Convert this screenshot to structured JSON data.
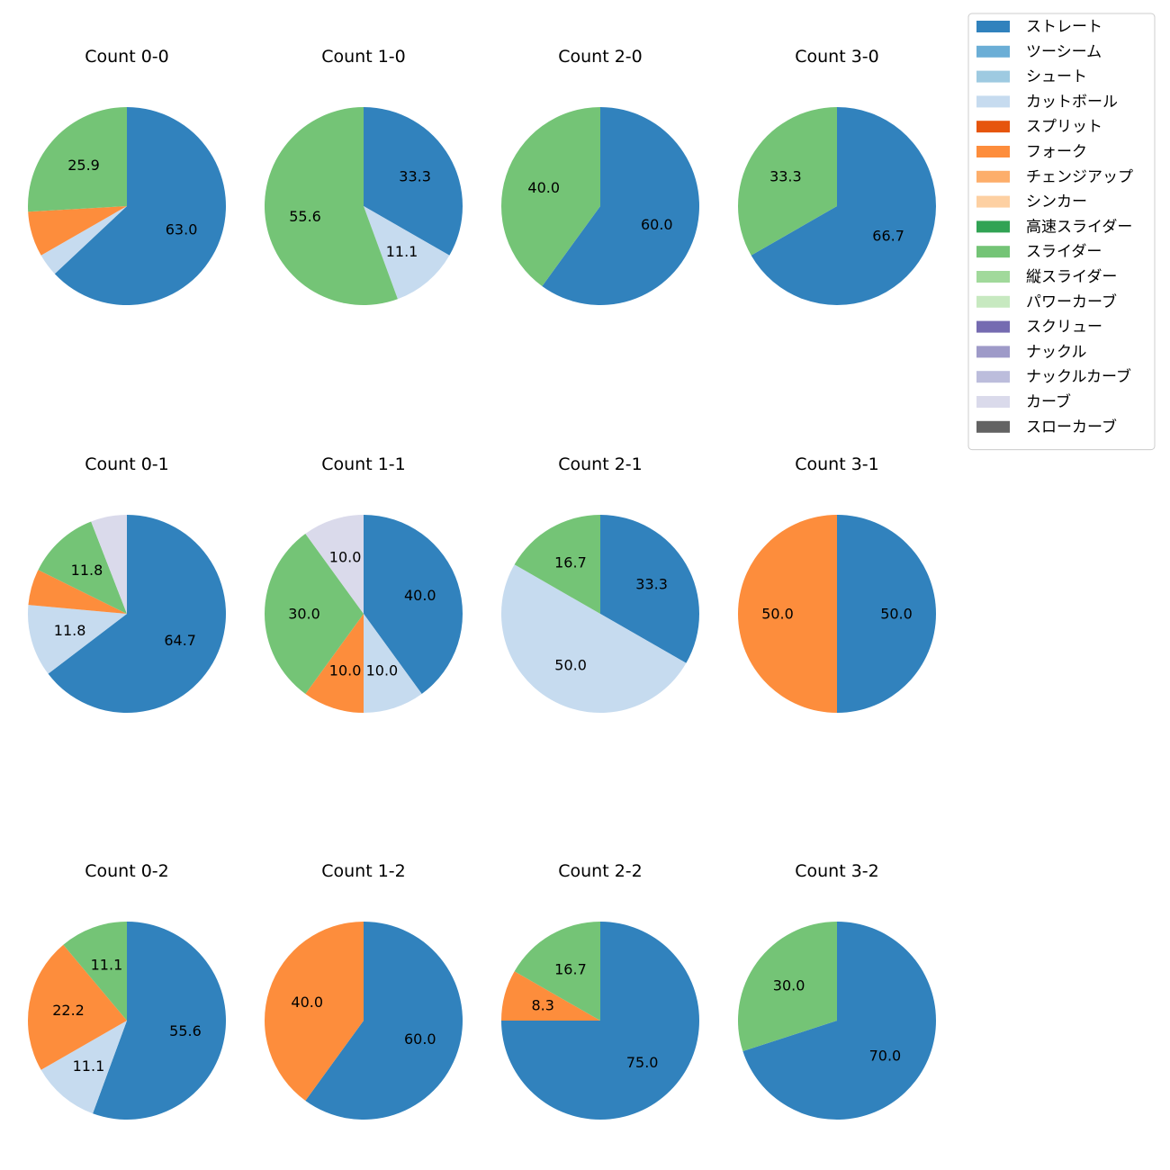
{
  "chart_data": {
    "type": "pie",
    "legend_placement": "top-right",
    "pitch_types": [
      {
        "name": "ストレート",
        "color": "#3182bd"
      },
      {
        "name": "ツーシーム",
        "color": "#6baed6"
      },
      {
        "name": "シュート",
        "color": "#9ecae1"
      },
      {
        "name": "カットボール",
        "color": "#c6dbef"
      },
      {
        "name": "スプリット",
        "color": "#e6550d"
      },
      {
        "name": "フォーク",
        "color": "#fd8d3c"
      },
      {
        "name": "チェンジアップ",
        "color": "#fdae6b"
      },
      {
        "name": "シンカー",
        "color": "#fdd0a2"
      },
      {
        "name": "高速スライダー",
        "color": "#31a354"
      },
      {
        "name": "スライダー",
        "color": "#74c476"
      },
      {
        "name": "縦スライダー",
        "color": "#a1d99b"
      },
      {
        "name": "パワーカーブ",
        "color": "#c7e9c0"
      },
      {
        "name": "スクリュー",
        "color": "#756bb1"
      },
      {
        "name": "ナックル",
        "color": "#9e9ac8"
      },
      {
        "name": "ナックルカーブ",
        "color": "#bcbddc"
      },
      {
        "name": "カーブ",
        "color": "#dadaeb"
      },
      {
        "name": "スローカーブ",
        "color": "#636363"
      }
    ],
    "charts": [
      {
        "title": "Count 0-0",
        "slices": [
          {
            "type": "ストレート",
            "value": 63.0,
            "label": "63.0"
          },
          {
            "type": "カットボール",
            "value": 3.7,
            "label": ""
          },
          {
            "type": "フォーク",
            "value": 7.4,
            "label": ""
          },
          {
            "type": "スライダー",
            "value": 25.9,
            "label": "25.9"
          }
        ]
      },
      {
        "title": "Count 1-0",
        "slices": [
          {
            "type": "ストレート",
            "value": 33.3,
            "label": "33.3"
          },
          {
            "type": "カットボール",
            "value": 11.1,
            "label": "11.1"
          },
          {
            "type": "スライダー",
            "value": 55.6,
            "label": "55.6"
          }
        ]
      },
      {
        "title": "Count 2-0",
        "slices": [
          {
            "type": "ストレート",
            "value": 60.0,
            "label": "60.0"
          },
          {
            "type": "スライダー",
            "value": 40.0,
            "label": "40.0"
          }
        ]
      },
      {
        "title": "Count 3-0",
        "slices": [
          {
            "type": "ストレート",
            "value": 66.7,
            "label": "66.7"
          },
          {
            "type": "スライダー",
            "value": 33.3,
            "label": "33.3"
          }
        ]
      },
      {
        "title": "Count 0-1",
        "slices": [
          {
            "type": "ストレート",
            "value": 64.7,
            "label": "64.7"
          },
          {
            "type": "カットボール",
            "value": 11.8,
            "label": "11.8"
          },
          {
            "type": "フォーク",
            "value": 5.9,
            "label": ""
          },
          {
            "type": "スライダー",
            "value": 11.8,
            "label": "11.8"
          },
          {
            "type": "カーブ",
            "value": 5.9,
            "label": ""
          }
        ]
      },
      {
        "title": "Count 1-1",
        "slices": [
          {
            "type": "ストレート",
            "value": 40.0,
            "label": "40.0"
          },
          {
            "type": "カットボール",
            "value": 10.0,
            "label": "10.0"
          },
          {
            "type": "フォーク",
            "value": 10.0,
            "label": "10.0"
          },
          {
            "type": "スライダー",
            "value": 30.0,
            "label": "30.0"
          },
          {
            "type": "カーブ",
            "value": 10.0,
            "label": "10.0"
          }
        ]
      },
      {
        "title": "Count 2-1",
        "slices": [
          {
            "type": "ストレート",
            "value": 33.3,
            "label": "33.3"
          },
          {
            "type": "カットボール",
            "value": 50.0,
            "label": "50.0"
          },
          {
            "type": "スライダー",
            "value": 16.7,
            "label": "16.7"
          }
        ]
      },
      {
        "title": "Count 3-1",
        "slices": [
          {
            "type": "ストレート",
            "value": 50.0,
            "label": "50.0"
          },
          {
            "type": "フォーク",
            "value": 50.0,
            "label": "50.0"
          }
        ]
      },
      {
        "title": "Count 0-2",
        "slices": [
          {
            "type": "ストレート",
            "value": 55.6,
            "label": "55.6"
          },
          {
            "type": "カットボール",
            "value": 11.1,
            "label": "11.1"
          },
          {
            "type": "フォーク",
            "value": 22.2,
            "label": "22.2"
          },
          {
            "type": "スライダー",
            "value": 11.1,
            "label": "11.1"
          }
        ]
      },
      {
        "title": "Count 1-2",
        "slices": [
          {
            "type": "ストレート",
            "value": 60.0,
            "label": "60.0"
          },
          {
            "type": "フォーク",
            "value": 40.0,
            "label": "40.0"
          }
        ]
      },
      {
        "title": "Count 2-2",
        "slices": [
          {
            "type": "ストレート",
            "value": 75.0,
            "label": "75.0"
          },
          {
            "type": "フォーク",
            "value": 8.3,
            "label": "8.3"
          },
          {
            "type": "スライダー",
            "value": 16.7,
            "label": "16.7"
          }
        ]
      },
      {
        "title": "Count 3-2",
        "slices": [
          {
            "type": "ストレート",
            "value": 70.0,
            "label": "70.0"
          },
          {
            "type": "スライダー",
            "value": 30.0,
            "label": "30.0"
          }
        ]
      }
    ]
  }
}
